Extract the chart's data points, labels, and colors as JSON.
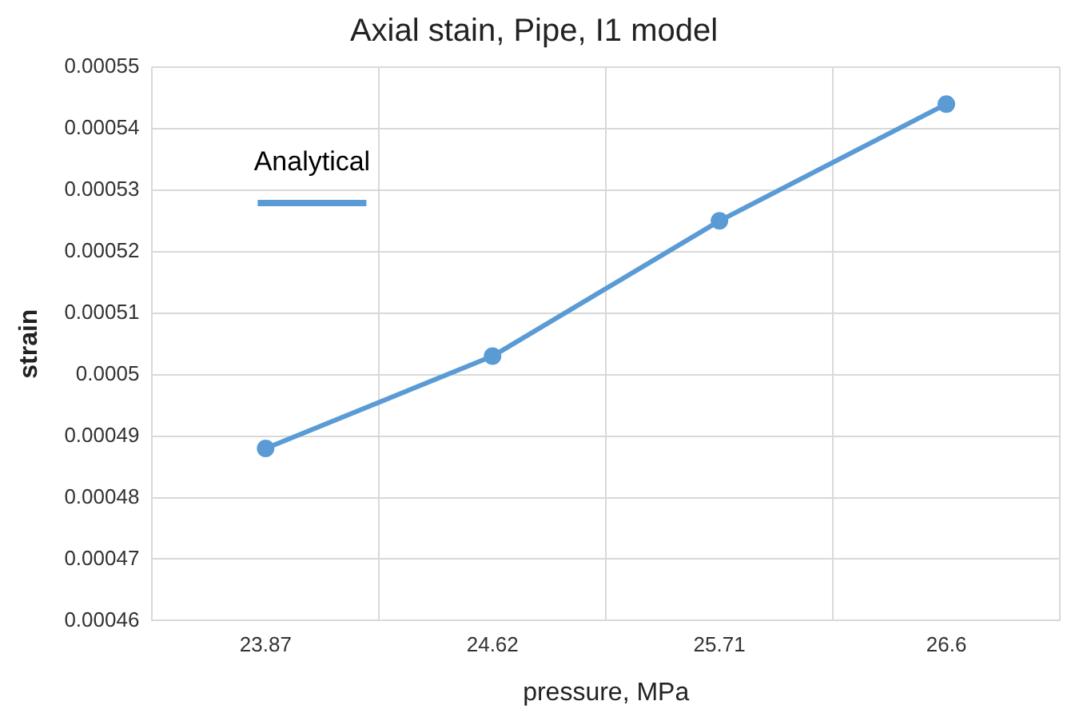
{
  "chart_data": {
    "type": "line",
    "title": "Axial stain, Pipe, I1 model",
    "xlabel": "pressure, MPa",
    "ylabel": "strain",
    "categories": [
      "23.87",
      "24.62",
      "25.71",
      "26.6"
    ],
    "series": [
      {
        "name": "Analytical",
        "color": "#5b9bd5",
        "values": [
          0.000488,
          0.000503,
          0.000525,
          0.000544
        ]
      }
    ],
    "ylim": [
      0.00046,
      0.00055
    ],
    "yticks": [
      0.00046,
      0.00047,
      0.00048,
      0.00049,
      0.0005,
      0.00051,
      0.00052,
      0.00053,
      0.00054,
      0.00055
    ],
    "grid": true,
    "legend": "top left",
    "marker": "circle",
    "line_style": "solid"
  }
}
